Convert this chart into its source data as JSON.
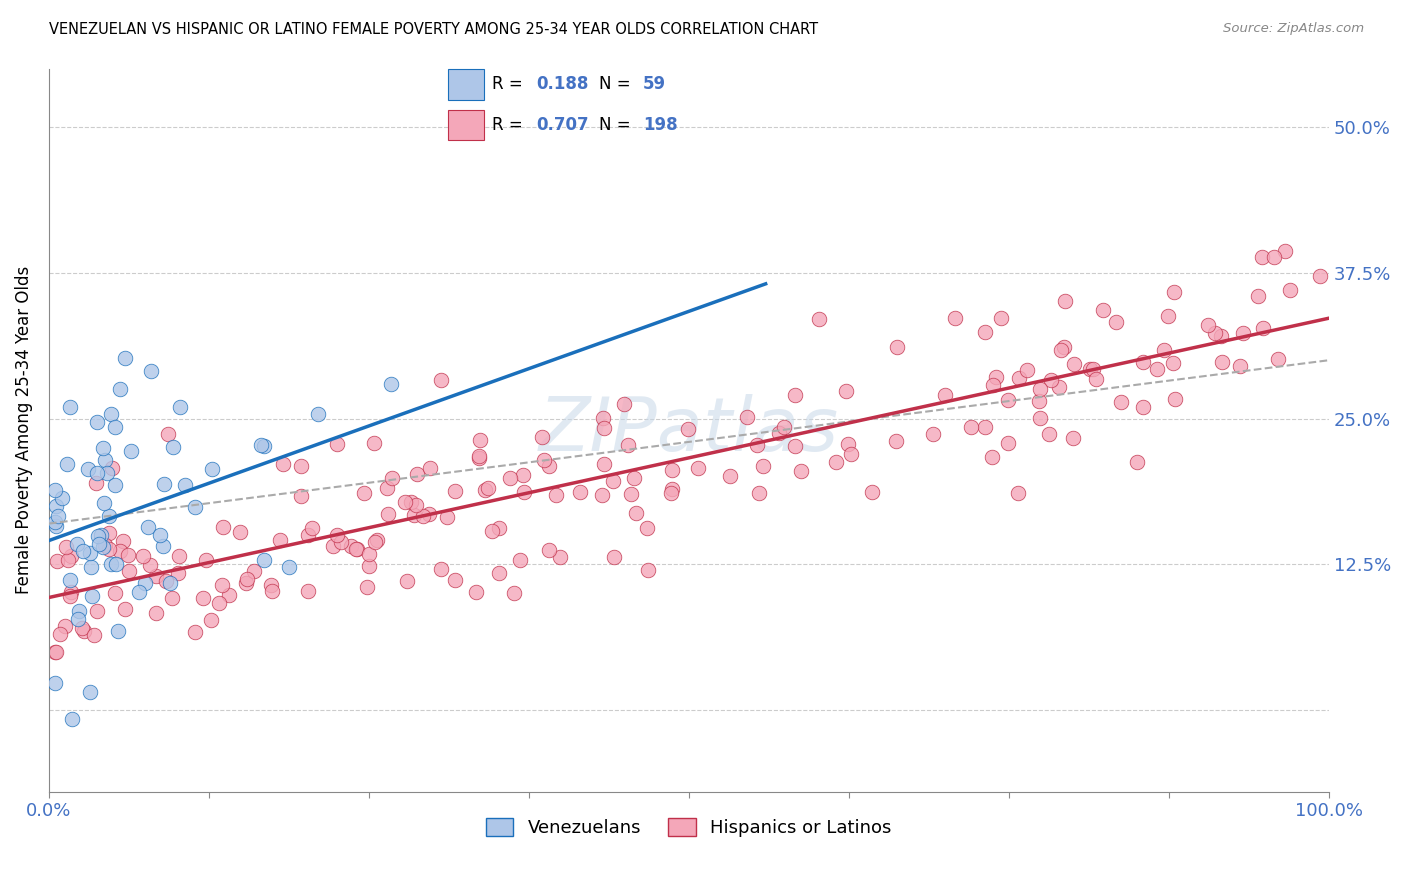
{
  "title": "VENEZUELAN VS HISPANIC OR LATINO FEMALE POVERTY AMONG 25-34 YEAR OLDS CORRELATION CHART",
  "source": "Source: ZipAtlas.com",
  "ylabel": "Female Poverty Among 25-34 Year Olds",
  "xlim": [
    0.0,
    1.0
  ],
  "ylim": [
    -0.07,
    0.55
  ],
  "xtick_pos": [
    0.0,
    0.125,
    0.25,
    0.375,
    0.5,
    0.625,
    0.75,
    0.875,
    1.0
  ],
  "xticklabels": [
    "0.0%",
    "",
    "",
    "",
    "",
    "",
    "",
    "",
    "100.0%"
  ],
  "ytick_positions": [
    0.0,
    0.125,
    0.25,
    0.375,
    0.5
  ],
  "ytick_labels": [
    "",
    "12.5%",
    "25.0%",
    "37.5%",
    "50.0%"
  ],
  "R_venezuelan": 0.188,
  "N_venezuelan": 59,
  "R_hispanic": 0.707,
  "N_hispanic": 198,
  "venezuelan_color": "#aec6e8",
  "hispanic_color": "#f4a7b9",
  "venezuelan_line_color": "#1a6fbb",
  "hispanic_line_color": "#c0304a",
  "dashed_line_color": "#aaaaaa",
  "legend_label_venezuelan": "Venezuelans",
  "legend_label_hispanic": "Hispanics or Latinos",
  "watermark": "ZIPatlas",
  "background_color": "#ffffff",
  "grid_color": "#cccccc"
}
